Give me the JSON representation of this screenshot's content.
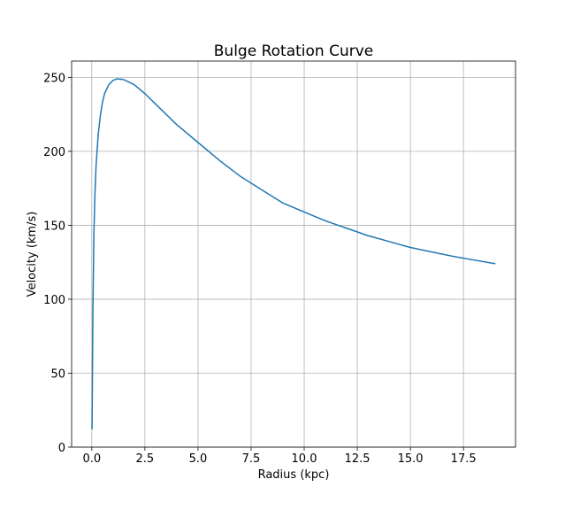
{
  "chart_data": {
    "type": "line",
    "title": "Bulge Rotation Curve",
    "xlabel": "Radius (kpc)",
    "ylabel": "Velocity (km/s)",
    "xlim": [
      -0.95,
      19.95
    ],
    "ylim": [
      0,
      261
    ],
    "grid": true,
    "xticks": [
      0.0,
      2.5,
      5.0,
      7.5,
      10.0,
      12.5,
      15.0,
      17.5
    ],
    "xtick_labels": [
      "0.0",
      "2.5",
      "5.0",
      "7.5",
      "10.0",
      "12.5",
      "15.0",
      "17.5"
    ],
    "yticks": [
      0,
      50,
      100,
      150,
      200,
      250
    ],
    "ytick_labels": [
      "0",
      "50",
      "100",
      "150",
      "200",
      "250"
    ],
    "line_color": "#1f77b4",
    "series": [
      {
        "x": [
          0.01,
          0.05,
          0.1,
          0.15,
          0.2,
          0.3,
          0.4,
          0.5,
          0.6,
          0.8,
          1.0,
          1.2,
          1.5,
          2.0,
          2.5,
          3.0,
          3.5,
          4.0,
          5.0,
          6.0,
          7.0,
          8.0,
          9.0,
          10.0,
          11.0,
          12.0,
          13.0,
          14.0,
          15.0,
          16.0,
          17.0,
          18.0,
          19.0
        ],
        "y": [
          12,
          90,
          145,
          172,
          190,
          211,
          224,
          233,
          239,
          245,
          248,
          249,
          248.5,
          245,
          239,
          232,
          225,
          218,
          206,
          194,
          183,
          174,
          165,
          159,
          153,
          148,
          143,
          139,
          135,
          132,
          129,
          126.5,
          124
        ]
      }
    ]
  }
}
